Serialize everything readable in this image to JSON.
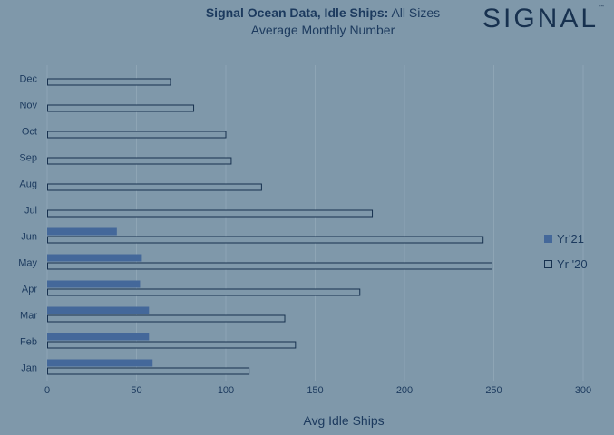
{
  "header": {
    "title_bold": "Signal Ocean Data, Idle Ships:",
    "title_rest": " All Sizes",
    "subtitle": "Average Monthly  Number",
    "logo_text": "SIGNAL",
    "logo_tm": "™"
  },
  "colors": {
    "background": "#7f98aa",
    "text": "#1c3a5e",
    "bar_2021": "#44689a",
    "bar_2020_fill": "#7f98aa",
    "bar_2020_stroke": "#17314f",
    "grid": "#8ea5b5"
  },
  "chart_data": {
    "type": "bar",
    "orientation": "horizontal",
    "title": "Signal Ocean Data, Idle Ships: All Sizes",
    "subtitle": "Average Monthly  Number",
    "xlabel": "Avg Idle Ships",
    "ylabel": "",
    "xlim": [
      0,
      300
    ],
    "x_ticks": [
      0,
      50,
      100,
      150,
      200,
      250,
      300
    ],
    "categories": [
      "Jan",
      "Feb",
      "Mar",
      "Apr",
      "May",
      "Jun",
      "Jul",
      "Aug",
      "Sep",
      "Oct",
      "Nov",
      "Dec"
    ],
    "series": [
      {
        "name": "Yr'21",
        "values": [
          59,
          57,
          57,
          52,
          53,
          39,
          null,
          null,
          null,
          null,
          null,
          null
        ]
      },
      {
        "name": "Yr '20",
        "values": [
          113,
          139,
          133,
          175,
          249,
          244,
          182,
          120,
          103,
          100,
          82,
          69
        ]
      }
    ],
    "grid": true,
    "legend": "right"
  }
}
